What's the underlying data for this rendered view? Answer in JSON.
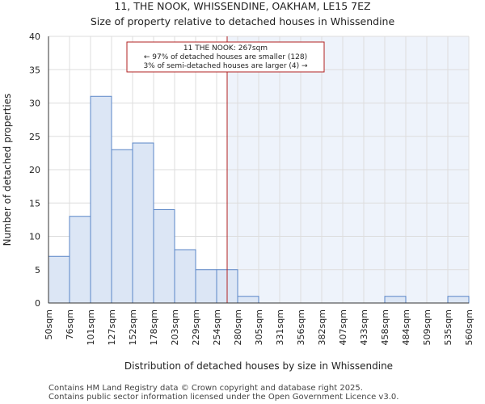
{
  "chart_data": {
    "type": "bar",
    "title": "11, THE NOOK, WHISSENDINE, OAKHAM, LE15 7EZ",
    "subtitle": "Size of property relative to detached houses in Whissendine",
    "xlabel": "Distribution of detached houses by size in Whissendine",
    "ylabel": "Number of detached properties",
    "ylim": [
      0,
      40
    ],
    "yticks": [
      0,
      5,
      10,
      15,
      20,
      25,
      30,
      35,
      40
    ],
    "bin_edges": [
      50,
      76,
      101,
      127,
      152,
      178,
      203,
      229,
      254,
      280,
      305,
      331,
      356,
      382,
      407,
      433,
      458,
      484,
      509,
      535,
      560
    ],
    "x_tick_labels": [
      "50sqm",
      "76sqm",
      "101sqm",
      "127sqm",
      "152sqm",
      "178sqm",
      "203sqm",
      "229sqm",
      "254sqm",
      "280sqm",
      "305sqm",
      "331sqm",
      "356sqm",
      "382sqm",
      "407sqm",
      "433sqm",
      "458sqm",
      "484sqm",
      "509sqm",
      "535sqm",
      "560sqm"
    ],
    "values": [
      7,
      13,
      31,
      23,
      24,
      14,
      8,
      5,
      5,
      1,
      0,
      0,
      0,
      0,
      0,
      0,
      1,
      0,
      0,
      1
    ],
    "marker": {
      "value": 267,
      "lines": [
        "11 THE NOOK: 267sqm",
        "← 97% of detached houses are smaller (128)",
        "3% of semi-detached houses are larger (4) →"
      ]
    },
    "colors": {
      "bar_fill": "#dce6f5",
      "bar_stroke": "#5a86c7",
      "marker_line": "#b22222",
      "shade_right": "#eef3fb",
      "grid": "#dddddd"
    }
  },
  "footer": {
    "line1": "Contains HM Land Registry data © Crown copyright and database right 2025.",
    "line2": "Contains public sector information licensed under the Open Government Licence v3.0."
  }
}
